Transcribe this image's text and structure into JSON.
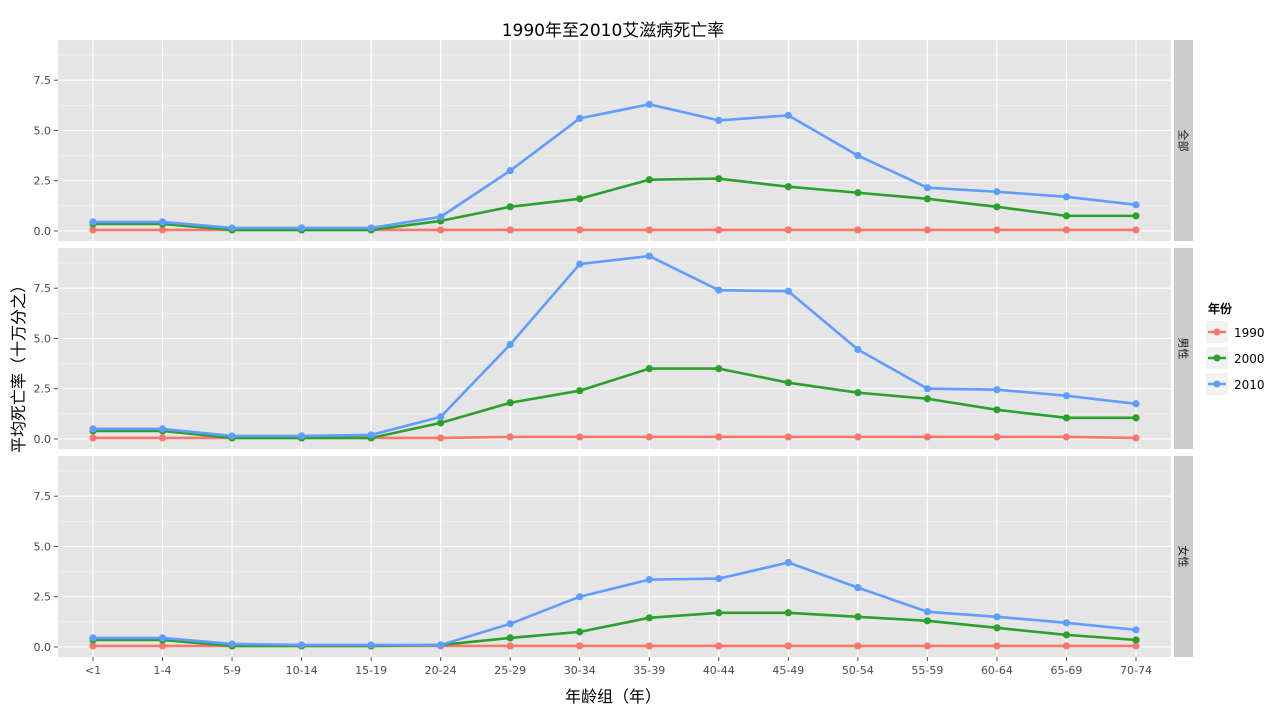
{
  "chart_data": {
    "type": "line",
    "title": "1990年至2010艾滋病死亡率",
    "xlabel": "年龄组（年）",
    "ylabel": "平均死亡率（十万分之）",
    "categories": [
      "<1",
      "1-4",
      "5-9",
      "10-14",
      "15-19",
      "20-24",
      "25-29",
      "30-34",
      "35-39",
      "40-44",
      "45-49",
      "50-54",
      "55-59",
      "60-64",
      "65-69",
      "70-74"
    ],
    "ylim": [
      -0.5,
      9.5
    ],
    "yticks": [
      0.0,
      2.5,
      5.0,
      7.5
    ],
    "ytick_labels": [
      "0.0",
      "2.5",
      "5.0",
      "7.5"
    ],
    "grid": true,
    "legend": {
      "title": "年份",
      "position": "right",
      "entries": [
        "1990",
        "2000",
        "2010"
      ]
    },
    "colors": {
      "1990": "#F8766D",
      "2000": "#2CA02C",
      "2010": "#619CFF"
    },
    "panels": [
      {
        "label": "全部",
        "series": [
          {
            "name": "1990",
            "values": [
              0.05,
              0.05,
              0.05,
              0.05,
              0.05,
              0.05,
              0.05,
              0.05,
              0.05,
              0.05,
              0.05,
              0.05,
              0.05,
              0.05,
              0.05,
              0.05
            ]
          },
          {
            "name": "2000",
            "values": [
              0.35,
              0.35,
              0.05,
              0.05,
              0.05,
              0.5,
              1.2,
              1.6,
              2.55,
              2.6,
              2.2,
              1.9,
              1.6,
              1.2,
              0.75,
              0.75
            ]
          },
          {
            "name": "2010",
            "values": [
              0.45,
              0.45,
              0.15,
              0.15,
              0.15,
              0.7,
              3.0,
              5.6,
              6.3,
              5.5,
              5.75,
              3.75,
              2.15,
              1.95,
              1.7,
              1.3
            ]
          }
        ]
      },
      {
        "label": "男性",
        "series": [
          {
            "name": "1990",
            "values": [
              0.05,
              0.05,
              0.05,
              0.05,
              0.05,
              0.05,
              0.1,
              0.1,
              0.1,
              0.1,
              0.1,
              0.1,
              0.1,
              0.1,
              0.1,
              0.05
            ]
          },
          {
            "name": "2000",
            "values": [
              0.4,
              0.4,
              0.05,
              0.05,
              0.05,
              0.8,
              1.8,
              2.4,
              3.5,
              3.5,
              2.8,
              2.3,
              2.0,
              1.45,
              1.05,
              1.05
            ]
          },
          {
            "name": "2010",
            "values": [
              0.5,
              0.5,
              0.15,
              0.15,
              0.2,
              1.1,
              4.7,
              8.7,
              9.1,
              7.4,
              7.35,
              4.45,
              2.5,
              2.45,
              2.15,
              1.75
            ]
          }
        ]
      },
      {
        "label": "女性",
        "series": [
          {
            "name": "1990",
            "values": [
              0.05,
              0.05,
              0.05,
              0.05,
              0.05,
              0.05,
              0.05,
              0.05,
              0.05,
              0.05,
              0.05,
              0.05,
              0.05,
              0.05,
              0.05,
              0.05
            ]
          },
          {
            "name": "2000",
            "values": [
              0.35,
              0.35,
              0.05,
              0.05,
              0.05,
              0.1,
              0.45,
              0.75,
              1.45,
              1.7,
              1.7,
              1.5,
              1.3,
              0.95,
              0.6,
              0.35
            ]
          },
          {
            "name": "2010",
            "values": [
              0.45,
              0.45,
              0.15,
              0.1,
              0.1,
              0.1,
              1.15,
              2.5,
              3.35,
              3.4,
              4.2,
              2.95,
              1.75,
              1.5,
              1.2,
              0.85
            ]
          }
        ]
      }
    ]
  }
}
